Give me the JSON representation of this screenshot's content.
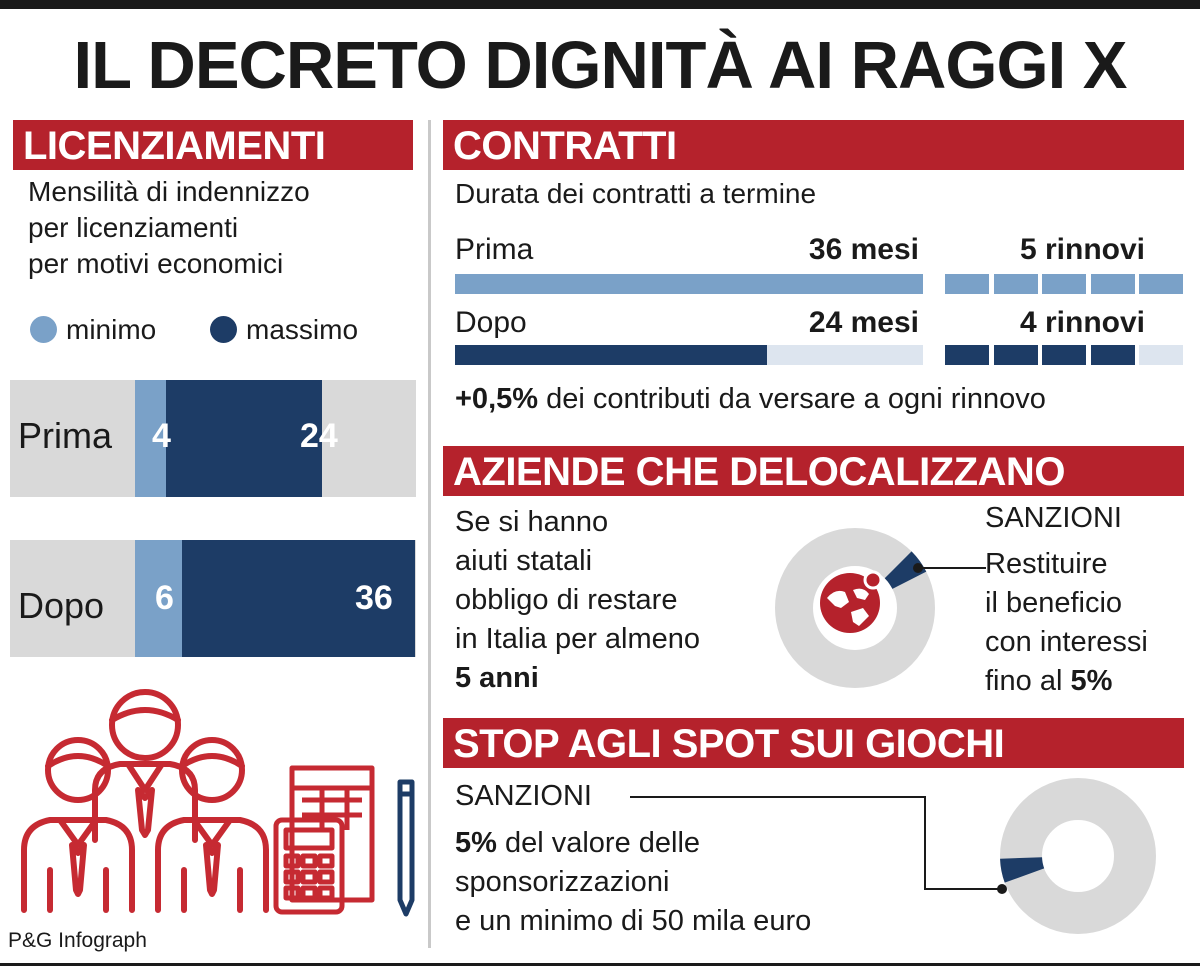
{
  "title": "IL DECRETO DIGNITÀ AI RAGGI X",
  "licenziamenti": {
    "header": "LICENZIAMENTI",
    "subtitle_lines": [
      "Mensilità di indennizzo",
      "per licenziamenti",
      "per motivi economici"
    ],
    "legend": {
      "min_label": "minimo",
      "max_label": "massimo"
    }
  },
  "contratti": {
    "header": "CONTRATTI",
    "subtitle": "Durata dei contratti a termine",
    "rows": [
      {
        "label": "Prima",
        "duration": "36 mesi",
        "renewals": "5 rinnovi"
      },
      {
        "label": "Dopo",
        "duration": "24 mesi",
        "renewals": "4 rinnovi"
      }
    ],
    "note_bold": "+0,5%",
    "note_rest": " dei contributi da versare a ogni rinnovo"
  },
  "aziende": {
    "header": "AZIENDE CHE DELOCALIZZANO",
    "text_lines": [
      "Se si hanno",
      "aiuti statali",
      "obbligo di restare",
      "in Italia per almeno"
    ],
    "text_bold": "5 anni",
    "sanzioni_label": "SANZIONI",
    "sanzioni_lines": [
      "Restituire",
      "il beneficio",
      "con interessi"
    ],
    "sanzioni_last": "fino al ",
    "sanzioni_last_bold": "5%"
  },
  "giochi": {
    "header": "STOP AGLI SPOT SUI GIOCHI",
    "sanzioni_label": "SANZIONI",
    "line1_bold": "5%",
    "line1_rest": " del valore delle",
    "line2": "sponsorizzazioni",
    "line3": "e un minimo di 50 mila euro"
  },
  "credit": "P&G Infograph",
  "colors": {
    "red": "#b5222c",
    "navy": "#1d3c66",
    "light_blue": "#7aa1c8",
    "grey": "#d9d9d9",
    "pale_blue": "#dde5ef"
  },
  "chart_data": [
    {
      "type": "bar",
      "title": "LICENZIAMENTI",
      "categories": [
        "Prima",
        "Dopo"
      ],
      "series": [
        {
          "name": "minimo",
          "values": [
            4,
            6
          ]
        },
        {
          "name": "massimo",
          "values": [
            24,
            36
          ]
        }
      ],
      "value_labels": [
        "4",
        "24",
        "6",
        "36"
      ]
    },
    {
      "type": "bar",
      "title": "CONTRATTI",
      "categories": [
        "Prima",
        "Dopo"
      ],
      "series": [
        {
          "name": "mesi",
          "values": [
            36,
            24
          ]
        },
        {
          "name": "rinnovi",
          "values": [
            5,
            4
          ]
        }
      ]
    },
    {
      "type": "pie",
      "title": "AZIENDE CHE DELOCALIZZANO",
      "values": [
        5,
        95
      ]
    },
    {
      "type": "pie",
      "title": "STOP AGLI SPOT SUI GIOCHI",
      "values": [
        5,
        95
      ]
    }
  ]
}
